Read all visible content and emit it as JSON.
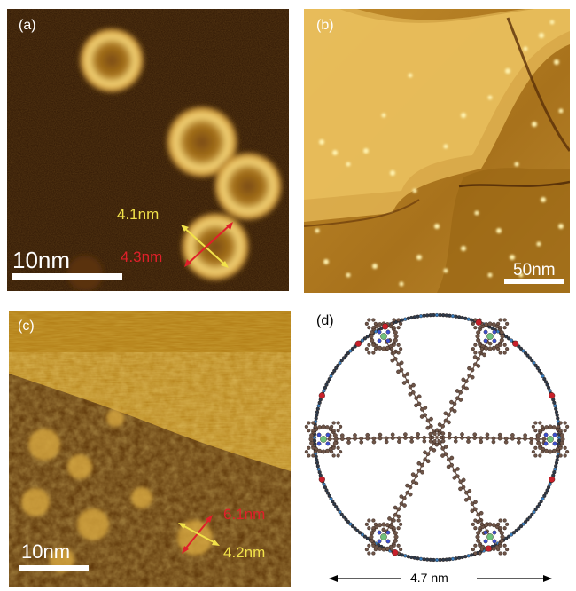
{
  "panels": {
    "a": {
      "label": "(a)",
      "scale_text": "10nm",
      "measure_yellow": "4.1nm",
      "measure_red": "4.3nm"
    },
    "b": {
      "label": "(b)",
      "scale_text": "50nm"
    },
    "c": {
      "label": "(c)",
      "scale_text": "10nm",
      "measure_red": "6.1nm",
      "measure_yellow": "4.2nm"
    },
    "d": {
      "label": "(d)",
      "dimension_text": "4.7 nm"
    }
  },
  "colors": {
    "stm_dark": "#3a1c05",
    "stm_mid": "#8a5a12",
    "stm_bright": "#f0d070",
    "measure_yellow": "#f2e24a",
    "measure_red": "#e0202a",
    "atom_carbon": "#6e5548",
    "atom_nitrogen": "#3c4fd0",
    "atom_zinc": "#6fc27a",
    "atom_oxygen": "#c8202a",
    "ring_blue": "#3a7fc0"
  },
  "icons": {
    "arrow_left": "arrow-left-icon",
    "arrow_right": "arrow-right-icon"
  }
}
